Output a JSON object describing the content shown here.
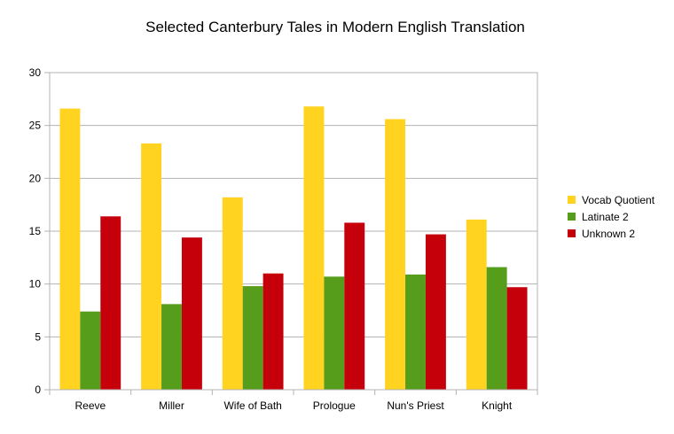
{
  "chart_data": {
    "type": "bar",
    "title": "Selected Canterbury Tales in Modern English Translation",
    "xlabel": "",
    "ylabel": "",
    "categories": [
      "Reeve",
      "Miller",
      "Wife of Bath",
      "Prologue",
      "Nun's Priest",
      "Knight"
    ],
    "series": [
      {
        "name": "Vocab Quotient",
        "color": "#ffd320",
        "values": [
          26.6,
          23.3,
          18.2,
          26.8,
          25.6,
          16.1
        ]
      },
      {
        "name": "Latinate 2",
        "color": "#579d1c",
        "values": [
          7.4,
          8.1,
          9.8,
          10.7,
          10.9,
          11.6
        ]
      },
      {
        "name": "Unknown 2",
        "color": "#c5000b",
        "values": [
          16.4,
          14.4,
          11.0,
          15.8,
          14.7,
          9.7
        ]
      }
    ],
    "ylim": [
      0,
      30
    ],
    "yticks": [
      0,
      5,
      10,
      15,
      20,
      25,
      30
    ],
    "grid": true,
    "legend": "right"
  }
}
